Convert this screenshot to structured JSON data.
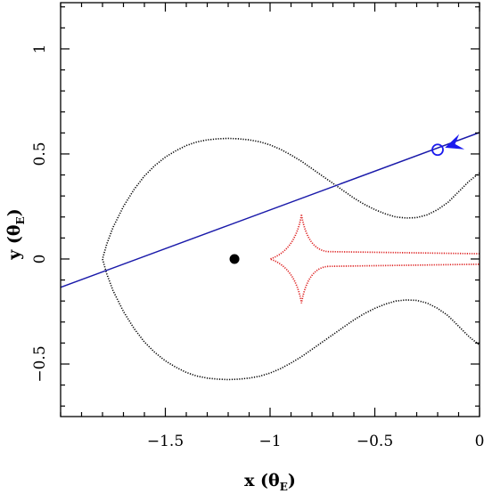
{
  "chart_data": {
    "type": "scatter",
    "title": "",
    "xlabel": {
      "main": "x (θ",
      "sub": "E",
      "close": ")"
    },
    "ylabel": {
      "main": "y (θ",
      "sub": "E",
      "close": ")"
    },
    "xlim": [
      -2.0,
      0.0
    ],
    "ylim": [
      -0.75,
      1.22
    ],
    "x_ticks": [
      {
        "value": -1.5,
        "label": "−1.5"
      },
      {
        "value": -1.0,
        "label": "−1"
      },
      {
        "value": -0.5,
        "label": "−0.5"
      },
      {
        "value": 0.0,
        "label": "0"
      }
    ],
    "y_ticks": [
      {
        "value": -0.5,
        "label": "−0.5"
      },
      {
        "value": 0.0,
        "label": "0"
      },
      {
        "value": 0.5,
        "label": "0.5"
      },
      {
        "value": 1.0,
        "label": "1"
      }
    ],
    "x_minor_step": 0.1,
    "y_minor_step": 0.1,
    "grid": false,
    "legend": "none",
    "series": [
      {
        "role": "critical-curve",
        "color": "#000000",
        "style": "dotted",
        "upper_points": [
          [
            0.0,
            0.41
          ],
          [
            -0.05,
            0.37
          ],
          [
            -0.1,
            0.32
          ],
          [
            -0.15,
            0.27
          ],
          [
            -0.2,
            0.235
          ],
          [
            -0.25,
            0.21
          ],
          [
            -0.3,
            0.197
          ],
          [
            -0.35,
            0.195
          ],
          [
            -0.4,
            0.2
          ],
          [
            -0.45,
            0.215
          ],
          [
            -0.5,
            0.235
          ],
          [
            -0.55,
            0.26
          ],
          [
            -0.6,
            0.29
          ],
          [
            -0.65,
            0.325
          ],
          [
            -0.7,
            0.36
          ],
          [
            -0.75,
            0.395
          ],
          [
            -0.8,
            0.43
          ],
          [
            -0.85,
            0.465
          ],
          [
            -0.9,
            0.495
          ],
          [
            -0.95,
            0.522
          ],
          [
            -1.0,
            0.543
          ],
          [
            -1.05,
            0.558
          ],
          [
            -1.1,
            0.567
          ],
          [
            -1.15,
            0.572
          ],
          [
            -1.2,
            0.574
          ],
          [
            -1.25,
            0.572
          ],
          [
            -1.3,
            0.567
          ],
          [
            -1.35,
            0.557
          ],
          [
            -1.4,
            0.54
          ],
          [
            -1.45,
            0.515
          ],
          [
            -1.5,
            0.485
          ],
          [
            -1.55,
            0.445
          ],
          [
            -1.6,
            0.395
          ],
          [
            -1.65,
            0.33
          ],
          [
            -1.7,
            0.25
          ],
          [
            -1.75,
            0.15
          ],
          [
            -1.78,
            0.07
          ],
          [
            -1.8,
            0.0
          ]
        ]
      },
      {
        "role": "caustic",
        "color": "#dd2222",
        "style": "dotted",
        "cusp_left": [
          -1.0,
          0.0
        ],
        "cusp_top": [
          -0.85,
          0.21
        ],
        "cusp_bottom": [
          -0.85,
          -0.21
        ],
        "arm_ends": [
          [
            0.0,
            0.025
          ],
          [
            0.0,
            -0.025
          ]
        ]
      },
      {
        "role": "source-trajectory",
        "color": "#1a1aaa",
        "style": "solid",
        "points": [
          [
            -2.0,
            -0.135
          ],
          [
            0.0,
            0.602
          ]
        ]
      },
      {
        "role": "lens-position",
        "color": "#000000",
        "marker": "filled-circle",
        "point": [
          -1.17,
          0.0
        ]
      },
      {
        "role": "source-position",
        "color": "#1a1aee",
        "marker": "open-circle-with-arrow",
        "point": [
          -0.2,
          0.52
        ],
        "arrow_tip": [
          -0.165,
          0.53
        ],
        "arrow_from": [
          -0.09,
          0.556
        ]
      }
    ]
  }
}
